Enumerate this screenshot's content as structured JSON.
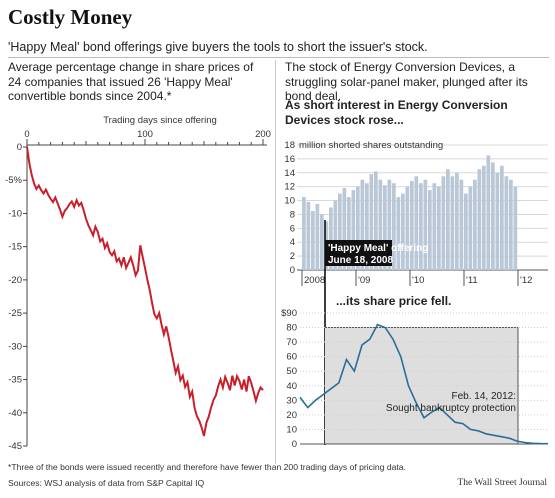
{
  "header": {
    "title": "Costly Money",
    "subtitle": "'Happy Meal' bond offerings give buyers the tools to short the issuer's stock."
  },
  "left_intro": "Average percentage change in share prices of 24 companies that issued 26 'Happy Meal' convertible bonds since 2004.*",
  "right_intro": "The stock of Energy Conversion Devices, a struggling solar-panel maker, plunged after its bond deal.",
  "right_top_heading": "As short interest in Energy Conversion Devices stock rose...",
  "right_bottom_heading": "...its share price fell.",
  "footnote": "*Three of the bonds were issued recently and therefore have fewer than 200 trading days of pricing data.",
  "sources": "Sources: WSJ analysis of data from S&P Capital IQ",
  "credit": "The Wall Street Journal",
  "colors": {
    "red_line": "#c8202a",
    "bars": "#b9c7d6",
    "price_line": "#2a6e97",
    "shade": "#dedede"
  },
  "chart_data": [
    {
      "type": "line",
      "title": "",
      "xlabel": "Trading days since offering",
      "ylabel": "",
      "xlim": [
        0,
        200
      ],
      "ylim": [
        -45,
        0
      ],
      "x_ticks": [
        0,
        100,
        200
      ],
      "y_ticks": [
        0,
        -5,
        -10,
        -15,
        -20,
        -25,
        -30,
        -35,
        -40,
        -45
      ],
      "y_tick_labels": [
        "0",
        "-5%",
        "-10",
        "-15",
        "-20",
        "-25",
        "-30",
        "-35",
        "-40",
        "-45"
      ],
      "grid": false,
      "series": [
        {
          "x": [
            0,
            2,
            4,
            6,
            8,
            10,
            12,
            14,
            16,
            18,
            20,
            22,
            24,
            26,
            28,
            30,
            32,
            34,
            36,
            38,
            40,
            42,
            44,
            46,
            48,
            50,
            52,
            54,
            56,
            58,
            60,
            62,
            64,
            66,
            68,
            70,
            72,
            74,
            76,
            78,
            80,
            82,
            84,
            86,
            88,
            90,
            92,
            94,
            96,
            98,
            100,
            102,
            104,
            106,
            108,
            110,
            112,
            114,
            116,
            118,
            120,
            122,
            124,
            126,
            128,
            130,
            132,
            134,
            136,
            138,
            140,
            142,
            144,
            146,
            148,
            150,
            152,
            154,
            156,
            158,
            160,
            162,
            164,
            166,
            168,
            170,
            172,
            174,
            176,
            178,
            180,
            182,
            184,
            186,
            188,
            190,
            192,
            194,
            196,
            198,
            200
          ],
          "y": [
            0,
            -2.5,
            -4.2,
            -5.5,
            -6.3,
            -5.8,
            -6.5,
            -7.0,
            -6.4,
            -7.2,
            -7.8,
            -8.3,
            -7.6,
            -8.5,
            -9.4,
            -10.5,
            -9.6,
            -9.2,
            -8.6,
            -8.2,
            -9.0,
            -8.0,
            -8.8,
            -8.4,
            -9.5,
            -10.8,
            -11.8,
            -12.5,
            -13.3,
            -12.0,
            -12.8,
            -14.2,
            -13.8,
            -15.2,
            -14.5,
            -15.8,
            -16.3,
            -15.7,
            -17.2,
            -16.8,
            -17.8,
            -16.6,
            -18.2,
            -17.4,
            -16.6,
            -17.8,
            -19.3,
            -18.6,
            -14.8,
            -16.5,
            -18.2,
            -20.0,
            -21.5,
            -23.5,
            -25.2,
            -25.8,
            -25.0,
            -26.7,
            -28.2,
            -27.0,
            -28.6,
            -30.5,
            -32.2,
            -34.0,
            -33.0,
            -35.1,
            -34.4,
            -36.1,
            -35.4,
            -37.6,
            -36.8,
            -39.3,
            -40.5,
            -41.2,
            -42.2,
            -43.5,
            -41.5,
            -40.6,
            -39.2,
            -38.1,
            -37.4,
            -36.0,
            -35.0,
            -36.2,
            -34.6,
            -35.5,
            -36.6,
            -34.4,
            -35.9,
            -34.5,
            -35.2,
            -36.5,
            -35.0,
            -36.8,
            -34.5,
            -35.5,
            -36.8,
            -38.2,
            -37.0,
            -36.2,
            -36.6
          ]
        }
      ]
    },
    {
      "type": "bar",
      "title": "",
      "ylabel": "million shorted shares outstanding",
      "xlabel": "",
      "x_ticks": [
        "2008",
        "'09",
        "'10",
        "'11",
        "'12"
      ],
      "ylim": [
        0,
        18
      ],
      "y_ticks": [
        0,
        2,
        4,
        6,
        8,
        10,
        12,
        14,
        16,
        18
      ],
      "annotation": "'Happy Meal' offering June 18, 2008",
      "series": [
        {
          "x": [
            "2008-01",
            "2008-02",
            "2008-03",
            "2008-04",
            "2008-05",
            "2008-06",
            "2008-07",
            "2008-08",
            "2008-09",
            "2008-10",
            "2008-11",
            "2008-12",
            "2009-01",
            "2009-02",
            "2009-03",
            "2009-04",
            "2009-05",
            "2009-06",
            "2009-07",
            "2009-08",
            "2009-09",
            "2009-10",
            "2009-11",
            "2009-12",
            "2010-01",
            "2010-02",
            "2010-03",
            "2010-04",
            "2010-05",
            "2010-06",
            "2010-07",
            "2010-08",
            "2010-09",
            "2010-10",
            "2010-11",
            "2010-12",
            "2011-01",
            "2011-02",
            "2011-03",
            "2011-04",
            "2011-05",
            "2011-06",
            "2011-07",
            "2011-08",
            "2011-09",
            "2011-10",
            "2011-11",
            "2011-12"
          ],
          "values": [
            10.5,
            9.8,
            8.5,
            9.5,
            8.0,
            7.0,
            9.0,
            10.0,
            11.0,
            11.8,
            10.5,
            11.5,
            12.0,
            13.0,
            12.5,
            13.8,
            14.2,
            13.0,
            12.2,
            13.0,
            12.5,
            10.5,
            11.0,
            12.0,
            12.8,
            13.5,
            12.5,
            13.0,
            11.5,
            12.5,
            12.0,
            13.5,
            14.5,
            13.5,
            14.0,
            13.0,
            11.0,
            12.0,
            13.0,
            14.5,
            15.0,
            16.5,
            15.5,
            14.0,
            15.0,
            13.5,
            13.0,
            12.0
          ]
        }
      ]
    },
    {
      "type": "area",
      "title": "",
      "ylabel": "",
      "xlabel": "",
      "ylim": [
        0,
        90
      ],
      "y_ticks": [
        0,
        10,
        20,
        30,
        40,
        50,
        60,
        70,
        80,
        90
      ],
      "y_tick_labels": [
        "0",
        "10",
        "20",
        "30",
        "40",
        "50",
        "60",
        "70",
        "80",
        "$90"
      ],
      "annotation": "Feb. 14, 2012: Sought bankruptcy protection",
      "series": [
        {
          "x": [
            "2007-01",
            "2007-03",
            "2007-05",
            "2007-07",
            "2007-09",
            "2007-11",
            "2008-01",
            "2008-03",
            "2008-05",
            "2008-06",
            "2008-07",
            "2008-08",
            "2008-09",
            "2008-10",
            "2008-11",
            "2008-12",
            "2009-02",
            "2009-04",
            "2009-06",
            "2009-08",
            "2009-10",
            "2009-12",
            "2010-03",
            "2010-06",
            "2010-09",
            "2010-12",
            "2011-03",
            "2011-06",
            "2011-09",
            "2011-12",
            "2012-02",
            "2012-05",
            "2012-08"
          ],
          "values": [
            32,
            25,
            30,
            34,
            38,
            42,
            58,
            50,
            68,
            72,
            82,
            80,
            72,
            60,
            40,
            28,
            18,
            22,
            25,
            20,
            15,
            14,
            10,
            9,
            7,
            6,
            5,
            4,
            2,
            1,
            0.5,
            0.3,
            0.2
          ]
        }
      ]
    }
  ]
}
